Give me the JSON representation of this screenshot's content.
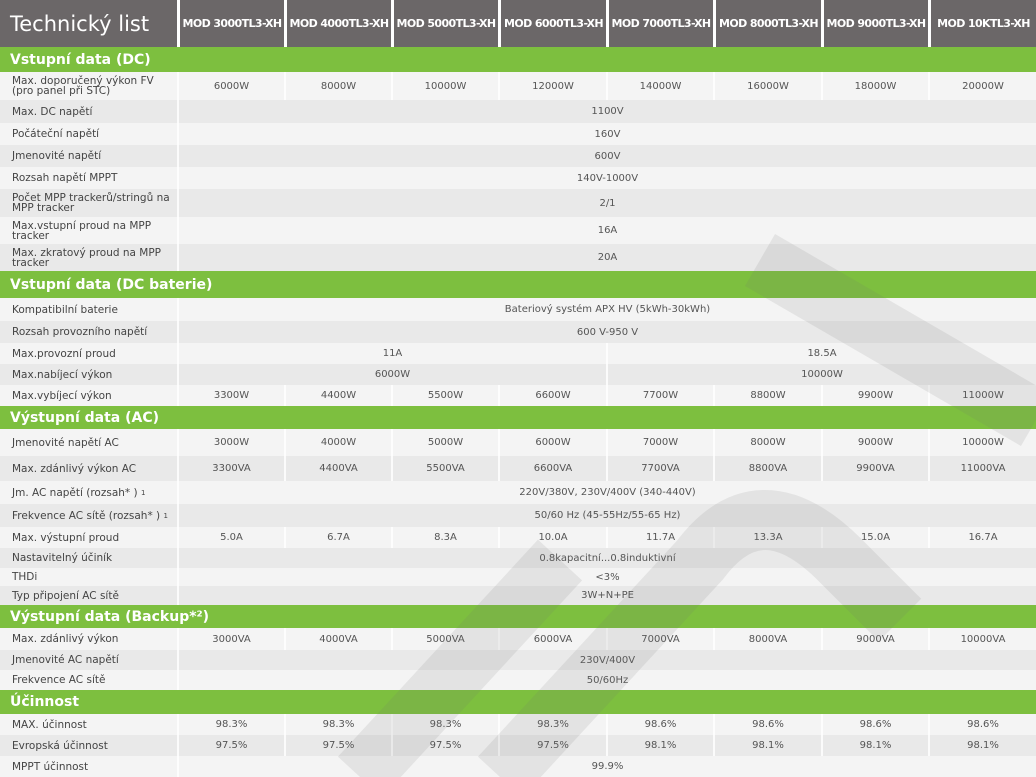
{
  "title": "Technický list",
  "models": [
    "MOD 3000TL3-XH",
    "MOD 4000TL3-XH",
    "MOD 5000TL3-XH",
    "MOD 6000TL3-XH",
    "MOD 7000TL3-XH",
    "MOD 8000TL3-XH",
    "MOD 9000TL3-XH",
    "MOD 10KTL3-XH"
  ],
  "colors": {
    "header": "#6b6768",
    "section": "#7dbf3f"
  },
  "sections": [
    {
      "title": "Vstupní data (DC)",
      "rows": [
        {
          "label": "Max. doporučený výkon FV (pro panel při STC)",
          "values": [
            "6000W",
            "8000W",
            "10000W",
            "12000W",
            "14000W",
            "16000W",
            "18000W",
            "20000W"
          ]
        },
        {
          "label": "Max. DC napětí",
          "values": [
            {
              "text": "1100V",
              "span": 8
            }
          ]
        },
        {
          "label": "Počáteční napětí",
          "values": [
            {
              "text": "160V",
              "span": 8
            }
          ]
        },
        {
          "label": "Jmenovité napětí",
          "values": [
            {
              "text": "600V",
              "span": 8
            }
          ]
        },
        {
          "label": "Rozsah napětí MPPT",
          "values": [
            {
              "text": "140V-1000V",
              "span": 8
            }
          ]
        },
        {
          "label": "Počet MPP trackerů/stringů na MPP tracker",
          "values": [
            {
              "text": "2/1",
              "span": 8
            }
          ]
        },
        {
          "label": "Max.vstupní proud na MPP tracker",
          "values": [
            {
              "text": "16A",
              "span": 8
            }
          ]
        },
        {
          "label": "Max. zkratový proud na  MPP tracker",
          "values": [
            {
              "text": "20A",
              "span": 8
            }
          ]
        }
      ]
    },
    {
      "title": "Vstupní data (DC baterie)",
      "rows": [
        {
          "label": "Kompatibilní baterie",
          "values": [
            {
              "text": "Bateriový systém APX HV  (5kWh-30kWh)",
              "span": 8
            }
          ]
        },
        {
          "label": "Rozsah provozního napětí",
          "values": [
            {
              "text": "600 V-950 V",
              "span": 8
            }
          ]
        },
        {
          "label": "Max.provozní proud",
          "values": [
            {
              "text": "11A",
              "span": 4
            },
            {
              "text": "18.5A",
              "span": 4
            }
          ]
        },
        {
          "label": "Max.nabíjecí výkon",
          "values": [
            {
              "text": "6000W",
              "span": 4
            },
            {
              "text": "10000W",
              "span": 4
            }
          ]
        },
        {
          "label": "Max.vybíjecí výkon",
          "values": [
            "3300W",
            "4400W",
            "5500W",
            "6600W",
            "7700W",
            "8800W",
            "9900W",
            "11000W"
          ]
        }
      ]
    },
    {
      "title": "Výstupní data (AC)",
      "rows": [
        {
          "label": "Jmenovité napětí AC",
          "values": [
            "3000W",
            "4000W",
            "5000W",
            "6000W",
            "7000W",
            "8000W",
            "9000W",
            "10000W"
          ]
        },
        {
          "label": "Max. zdánlivý výkon AC",
          "values": [
            "3300VA",
            "4400VA",
            "5500VA",
            "6600VA",
            "7700VA",
            "8800VA",
            "9900VA",
            "11000VA"
          ]
        },
        {
          "label": "Jm. AC napětí (rozsah* )",
          "sup": "1",
          "values": [
            {
              "text": "220V/380V, 230V/400V  (340-440V)",
              "span": 8
            }
          ]
        },
        {
          "label": "Frekvence AC sítě (rozsah* )",
          "sup": "1",
          "values": [
            {
              "text": "50/60 Hz (45-55Hz/55-65 Hz)",
              "span": 8
            }
          ]
        },
        {
          "label": "Max. výstupní proud",
          "values": [
            "5.0A",
            "6.7A",
            "8.3A",
            "10.0A",
            "11.7A",
            "13.3A",
            "15.0A",
            "16.7A"
          ]
        },
        {
          "label": "Nastavitelný účiník",
          "values": [
            {
              "text": "0.8kapacitní...0.8induktivní",
              "span": 8
            }
          ]
        },
        {
          "label": "THDi",
          "values": [
            {
              "text": "<3%",
              "span": 8
            }
          ]
        },
        {
          "label": "Typ připojení AC sítě",
          "values": [
            {
              "text": "3W+N+PE",
              "span": 8
            }
          ]
        }
      ]
    },
    {
      "title": "Výstupní   data (Backup*²)",
      "rows": [
        {
          "label": "Max. zdánlivý výkon",
          "values": [
            "3000VA",
            "4000VA",
            "5000VA",
            "6000VA",
            "7000VA",
            "8000VA",
            "9000VA",
            "10000VA"
          ]
        },
        {
          "label": "Jmenovité AC napětí",
          "values": [
            {
              "text": "230V/400V",
              "span": 8
            }
          ]
        },
        {
          "label": "Frekvence AC sítě",
          "values": [
            {
              "text": "50/60Hz",
              "span": 8
            }
          ]
        }
      ]
    },
    {
      "title": "Účinnost",
      "rows": [
        {
          "label": "MAX. účinnost",
          "values": [
            "98.3%",
            "98.3%",
            "98.3%",
            "98.3%",
            "98.6%",
            "98.6%",
            "98.6%",
            "98.6%"
          ]
        },
        {
          "label": "Evropská účinnost",
          "values": [
            "97.5%",
            "97.5%",
            "97.5%",
            "97.5%",
            "98.1%",
            "98.1%",
            "98.1%",
            "98.1%"
          ]
        },
        {
          "label": "MPPT účinnost",
          "values": [
            {
              "text": "99.9%",
              "span": 8
            }
          ]
        }
      ]
    }
  ]
}
